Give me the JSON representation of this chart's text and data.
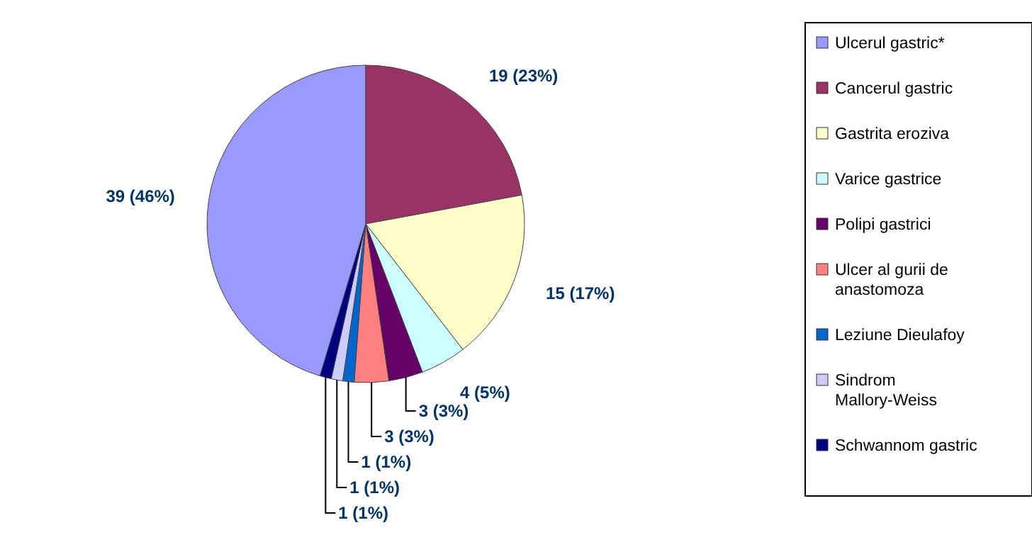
{
  "chart_data": {
    "type": "pie",
    "categories": [
      "Ulcerul gastric*",
      "Cancerul gastric",
      "Gastrita eroziva",
      "Varice gastrice",
      "Polipi gastrici",
      "Ulcer al gurii de anastomoza",
      "Leziune Dieulafoy",
      "Sindrom Mallory-Weiss",
      "Schwannom gastric"
    ],
    "values": [
      39,
      19,
      15,
      4,
      3,
      3,
      1,
      1,
      1
    ],
    "colors": [
      "#9999ff",
      "#993366",
      "#ffffcc",
      "#ccffff",
      "#660066",
      "#ff8080",
      "#0066cc",
      "#ccccff",
      "#000080"
    ],
    "value_labels": [
      "39  (46%)",
      "19  (23%)",
      "15  (17%)",
      "4  (5%)",
      "3  (3%)",
      "3  (3%)",
      "1  (1%)",
      "1  (1%)",
      "1  (1%)"
    ],
    "legend": "right"
  }
}
